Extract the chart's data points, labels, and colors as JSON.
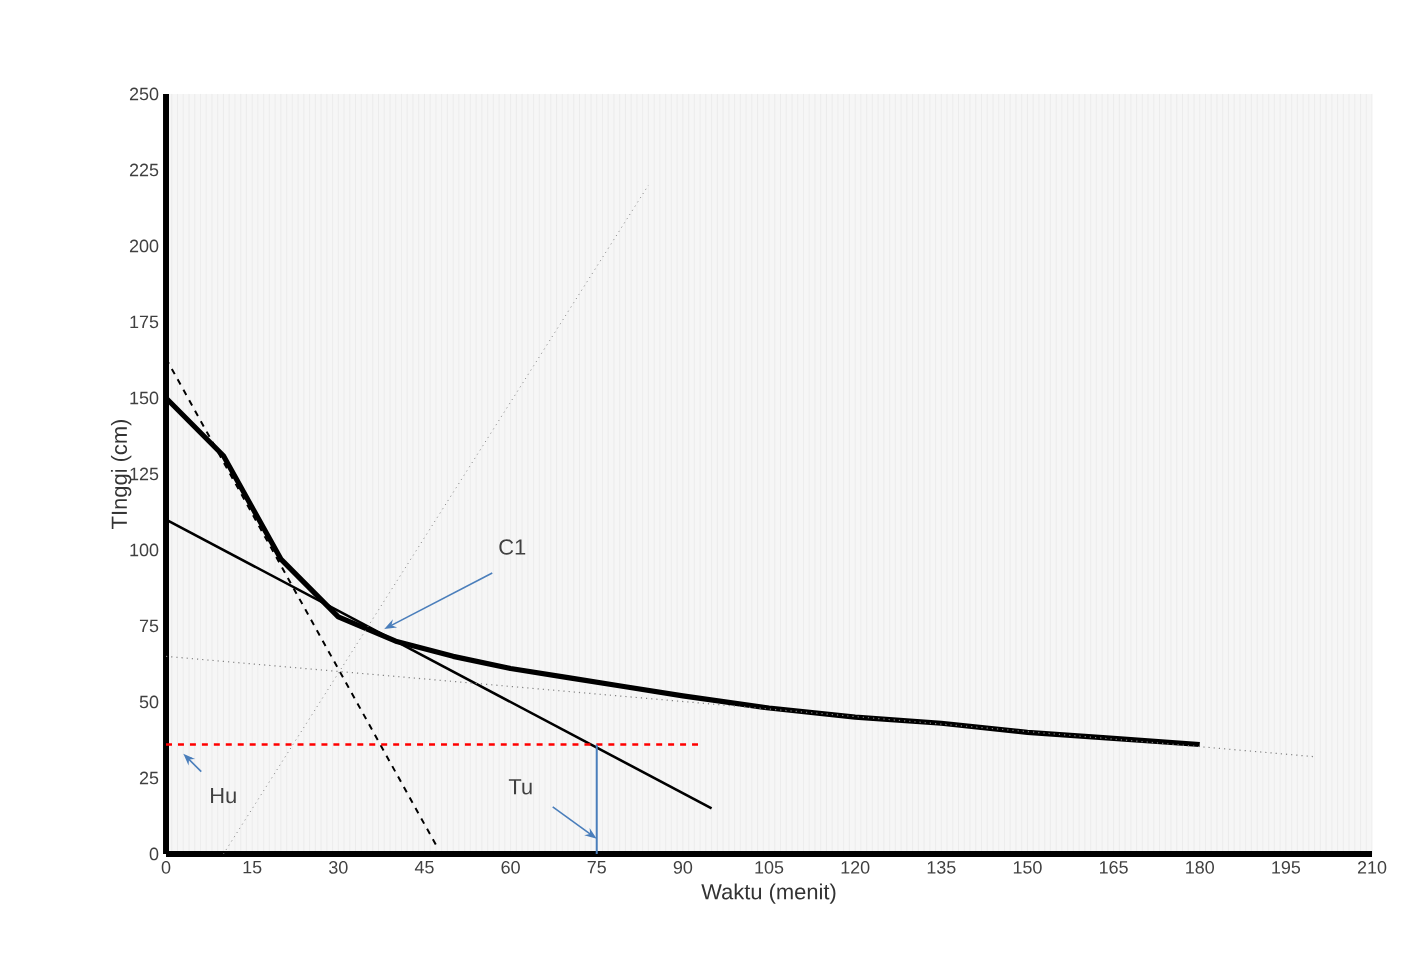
{
  "chart_data": {
    "type": "line",
    "xlabel": "Waktu (menit)",
    "ylabel": "TInggi (cm)",
    "xlim": [
      0,
      210
    ],
    "xticks": [
      0,
      15,
      30,
      45,
      60,
      75,
      90,
      105,
      120,
      135,
      150,
      165,
      180,
      195,
      210
    ],
    "ylim": [
      0,
      250
    ],
    "yticks": [
      0,
      25,
      50,
      75,
      100,
      125,
      150,
      175,
      200,
      225,
      250
    ],
    "grid": "x",
    "series": [
      {
        "color": "#000000",
        "line_style": "solid",
        "x": [
          0,
          10,
          20,
          30,
          40,
          50,
          60,
          70,
          80,
          90,
          105,
          120,
          135,
          150,
          165,
          180
        ],
        "values": [
          150,
          131,
          97,
          78,
          70,
          65,
          61,
          58,
          55,
          52,
          48,
          45,
          43,
          40,
          38,
          36
        ]
      },
      {
        "color": "#000000",
        "line_style": "solid",
        "x": [
          0,
          95
        ],
        "values": [
          110,
          15
        ]
      },
      {
        "color": "#000000",
        "line_style": "dashed",
        "x": [
          0,
          47
        ],
        "values": [
          163,
          3
        ]
      },
      {
        "color": "#808080",
        "line_style": "dotted",
        "x": [
          10,
          84
        ],
        "values": [
          0,
          220
        ]
      },
      {
        "color": "#808080",
        "line_style": "dotted",
        "x": [
          0,
          200
        ],
        "values": [
          65,
          32
        ]
      },
      {
        "color": "#ff0000",
        "line_style": "dashed",
        "x": [
          0,
          93
        ],
        "values": [
          36,
          36
        ]
      },
      {
        "color": "#4a7ebb",
        "line_style": "solid",
        "x": [
          75,
          75
        ],
        "values": [
          0,
          36
        ]
      }
    ],
    "annotations": [
      {
        "text": "C1",
        "x": 38,
        "y": 74
      },
      {
        "text": "Hu",
        "x": 3,
        "y": 33
      },
      {
        "text": "Tu",
        "x": 75,
        "y": 5
      }
    ]
  }
}
